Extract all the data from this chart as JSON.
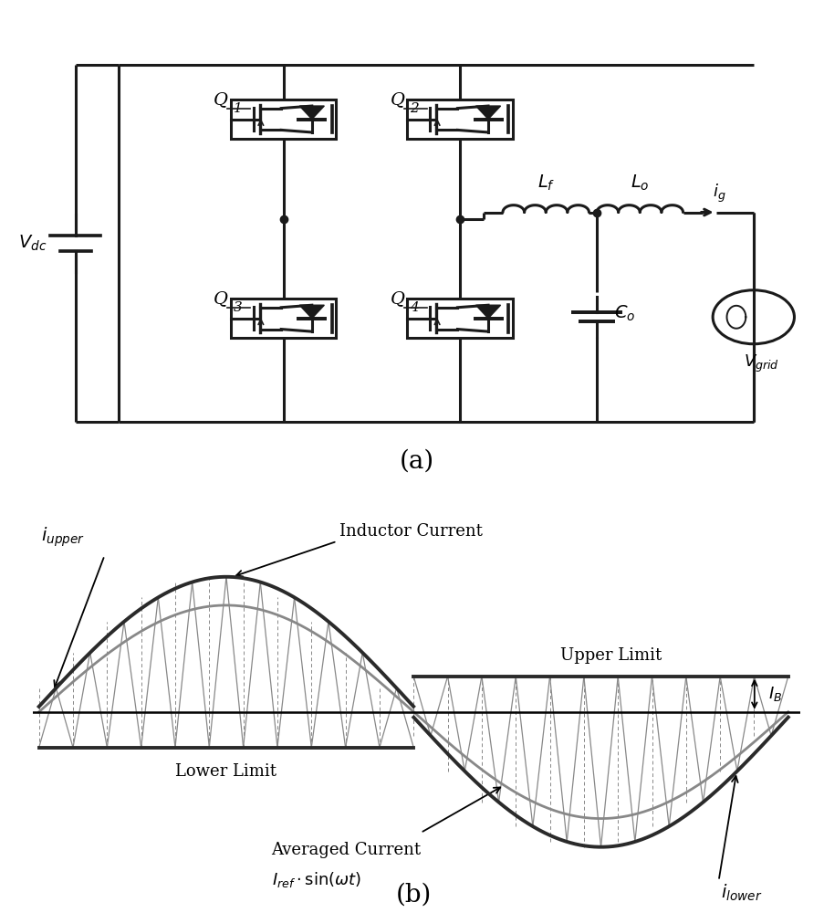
{
  "panel_a_label": "(a)",
  "panel_b_label": "(b)",
  "upper_limit_val": 0.2,
  "lower_limit_val": -0.2,
  "I_ref": 0.6,
  "ripple": 0.13,
  "n_switch": 11,
  "IB_label": "$I_B$",
  "upper_limit_label": "Upper Limit",
  "lower_limit_label": "Lower Limit",
  "averaged_label_line1": "Averaged Current",
  "averaged_label_line2": "$I_{ref}\\cdot\\sin(\\omega t)$",
  "inductor_label": "Inductor Current",
  "i_upper_label": "$i_{upper}$",
  "i_lower_label": "$i_{lower}$",
  "line_color": "#1a1a1a",
  "ripple_color": "#888888",
  "envelope_color": "#2a2a2a",
  "avg_color": "#888888"
}
